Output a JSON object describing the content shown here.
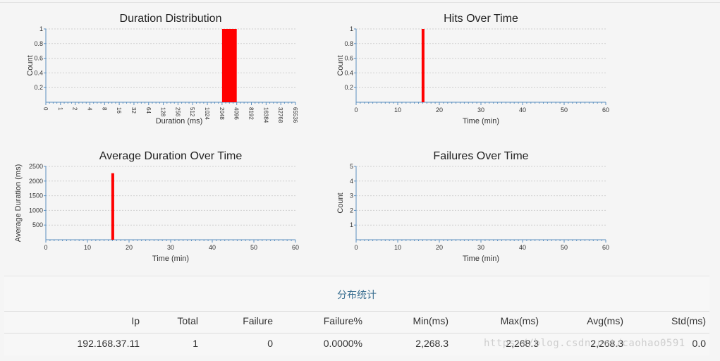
{
  "colors": {
    "bar": "#ff0000",
    "axis": "#5a8fc0",
    "grid": "#cfcfcf",
    "stats_title": "#3a6f91"
  },
  "chart_data": [
    {
      "type": "bar",
      "title": "Duration Distribution",
      "xlabel": "Duration (ms)",
      "ylabel": "Count",
      "x_scale": "log2",
      "x_ticks": [
        "0",
        "1",
        "2",
        "4",
        "8",
        "16",
        "32",
        "64",
        "128",
        "256",
        "512",
        "1024",
        "2048",
        "4096",
        "8192",
        "16384",
        "32768",
        "65536"
      ],
      "ylim": [
        0,
        1
      ],
      "y_ticks": [
        "0.2",
        "0.4",
        "0.6",
        "0.8",
        "1"
      ],
      "grid": true,
      "bars": [
        {
          "from": "2048",
          "to": "4096",
          "value": 1
        }
      ]
    },
    {
      "type": "bar",
      "title": "Hits Over Time",
      "xlabel": "Time (min)",
      "ylabel": "Count",
      "xlim": [
        0,
        60
      ],
      "x_ticks": [
        "0",
        "10",
        "20",
        "30",
        "40",
        "50",
        "60"
      ],
      "ylim": [
        0,
        1
      ],
      "y_ticks": [
        "0.2",
        "0.4",
        "0.6",
        "0.8",
        "1"
      ],
      "grid": true,
      "bars": [
        {
          "x": 16,
          "value": 1
        }
      ]
    },
    {
      "type": "bar",
      "title": "Average Duration Over Time",
      "xlabel": "Time (min)",
      "ylabel": "Average Duration (ms)",
      "xlim": [
        0,
        60
      ],
      "x_ticks": [
        "0",
        "10",
        "20",
        "30",
        "40",
        "50",
        "60"
      ],
      "ylim": [
        0,
        2500
      ],
      "y_ticks": [
        "500",
        "1000",
        "1500",
        "2000",
        "2500"
      ],
      "grid": true,
      "bars": [
        {
          "x": 16,
          "value": 2268.3
        }
      ]
    },
    {
      "type": "bar",
      "title": "Failures Over Time",
      "xlabel": "Time (min)",
      "ylabel": "Count",
      "xlim": [
        0,
        60
      ],
      "x_ticks": [
        "0",
        "10",
        "20",
        "30",
        "40",
        "50",
        "60"
      ],
      "ylim": [
        0,
        5
      ],
      "y_ticks": [
        "1",
        "2",
        "3",
        "4",
        "5"
      ],
      "grid": true,
      "bars": []
    }
  ],
  "stats": {
    "title": "分布统计",
    "headers": [
      "Ip",
      "Total",
      "Failure",
      "Failure%",
      "Min(ms)",
      "Max(ms)",
      "Avg(ms)",
      "Std(ms)"
    ],
    "rows": [
      [
        "192.168.37.11",
        "1",
        "0",
        "0.0000%",
        "2,268.3",
        "2,268.3",
        "2,268.3",
        "0.0"
      ]
    ]
  },
  "watermark": "https://blog.csdn.net/caohao0591"
}
